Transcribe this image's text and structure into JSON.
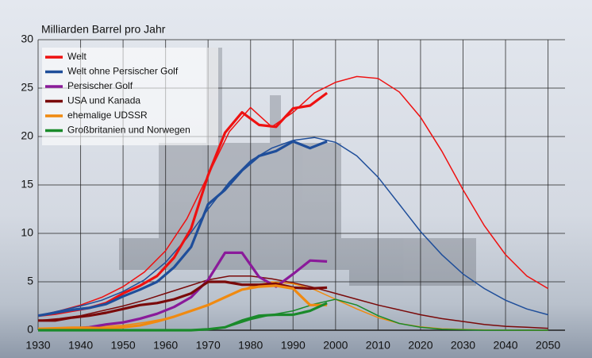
{
  "chart_data": {
    "type": "line",
    "y_label": "Milliarden Barrel pro Jahr",
    "x": [
      1930,
      1934,
      1938,
      1942,
      1946,
      1950,
      1954,
      1958,
      1962,
      1966,
      1970,
      1974,
      1978,
      1982,
      1986,
      1990,
      1994,
      1998
    ],
    "model_x": [
      1930,
      1935,
      1940,
      1945,
      1950,
      1955,
      1960,
      1965,
      1970,
      1975,
      1980,
      1985,
      1990,
      1995,
      2000,
      2005,
      2010,
      2015,
      2020,
      2025,
      2030,
      2035,
      2040,
      2045,
      2050
    ],
    "xlim": [
      1930,
      2054
    ],
    "ylim": [
      0,
      30
    ],
    "xticks": [
      1930,
      1940,
      1950,
      1960,
      1970,
      1980,
      1990,
      2000,
      2010,
      2020,
      2030,
      2040,
      2050
    ],
    "yticks": [
      0,
      5,
      10,
      15,
      20,
      25,
      30
    ],
    "grid": true,
    "legend": "upper-left",
    "series": [
      {
        "name": "Welt",
        "color": "#ee1111",
        "values": [
          1.5,
          1.7,
          2.0,
          2.3,
          2.8,
          3.8,
          4.6,
          5.6,
          7.5,
          10.5,
          16.0,
          20.4,
          22.5,
          21.2,
          21.0,
          22.9,
          23.2,
          24.5
        ],
        "model_values": [
          1.5,
          2.0,
          2.6,
          3.4,
          4.5,
          6.0,
          8.2,
          11.5,
          16.0,
          20.5,
          23.0,
          21.0,
          22.5,
          24.5,
          25.6,
          26.2,
          26.0,
          24.6,
          22.0,
          18.5,
          14.5,
          10.8,
          7.8,
          5.6,
          4.3
        ]
      },
      {
        "name": "Welt ohne Persischer Golf",
        "color": "#1f4e9a",
        "values": [
          1.5,
          1.8,
          2.1,
          2.3,
          2.7,
          3.5,
          4.2,
          5.0,
          6.5,
          8.6,
          13.0,
          14.5,
          16.5,
          18.0,
          18.5,
          19.5,
          18.8,
          19.5
        ],
        "model_values": [
          1.5,
          2.0,
          2.5,
          3.1,
          4.0,
          5.2,
          7.0,
          9.5,
          12.5,
          15.3,
          17.5,
          18.8,
          19.6,
          19.9,
          19.4,
          18.0,
          15.8,
          13.0,
          10.2,
          7.8,
          5.8,
          4.3,
          3.1,
          2.2,
          1.6
        ]
      },
      {
        "name": "Persischer Golf",
        "color": "#8a1a9a",
        "values": [
          0.1,
          0.1,
          0.2,
          0.3,
          0.6,
          0.8,
          1.2,
          1.7,
          2.4,
          3.4,
          5.2,
          8.0,
          8.0,
          5.5,
          4.5,
          5.8,
          7.2,
          7.1
        ]
      },
      {
        "name": "USA und Kanada",
        "color": "#7a0a0a",
        "values": [
          1.0,
          1.0,
          1.3,
          1.5,
          1.8,
          2.2,
          2.6,
          2.8,
          3.2,
          3.8,
          5.0,
          5.0,
          4.7,
          4.7,
          4.8,
          4.4,
          4.3,
          4.4
        ],
        "model_values": [
          1.0,
          1.2,
          1.5,
          2.0,
          2.5,
          3.1,
          3.8,
          4.5,
          5.2,
          5.6,
          5.6,
          5.3,
          4.9,
          4.4,
          3.8,
          3.2,
          2.6,
          2.1,
          1.6,
          1.2,
          0.9,
          0.6,
          0.4,
          0.3,
          0.2
        ]
      },
      {
        "name": "ehemalige UDSSR",
        "color": "#f08a10",
        "values": [
          0.15,
          0.2,
          0.25,
          0.25,
          0.2,
          0.3,
          0.5,
          0.9,
          1.4,
          2.0,
          2.6,
          3.4,
          4.2,
          4.5,
          4.6,
          4.3,
          2.6,
          2.6
        ],
        "model_values": [
          0.2,
          0.2,
          0.3,
          0.4,
          0.5,
          0.8,
          1.2,
          1.8,
          2.6,
          3.6,
          4.5,
          5.0,
          4.8,
          4.2,
          3.2,
          2.2,
          1.3,
          0.7,
          0.35,
          0.15,
          0.08,
          0.03,
          0.01,
          0,
          0
        ]
      },
      {
        "name": "Großbritanien und Norwegen",
        "color": "#1a8a2a",
        "values": [
          0,
          0,
          0,
          0,
          0,
          0,
          0,
          0,
          0,
          0,
          0.1,
          0.3,
          1.0,
          1.5,
          1.6,
          1.6,
          2.0,
          2.8
        ],
        "model_values": [
          0,
          0,
          0,
          0,
          0,
          0,
          0,
          0,
          0.05,
          0.4,
          1.1,
          1.6,
          2.0,
          2.7,
          3.2,
          2.6,
          1.5,
          0.7,
          0.3,
          0.1,
          0.05,
          0,
          0,
          0,
          0
        ]
      }
    ]
  }
}
